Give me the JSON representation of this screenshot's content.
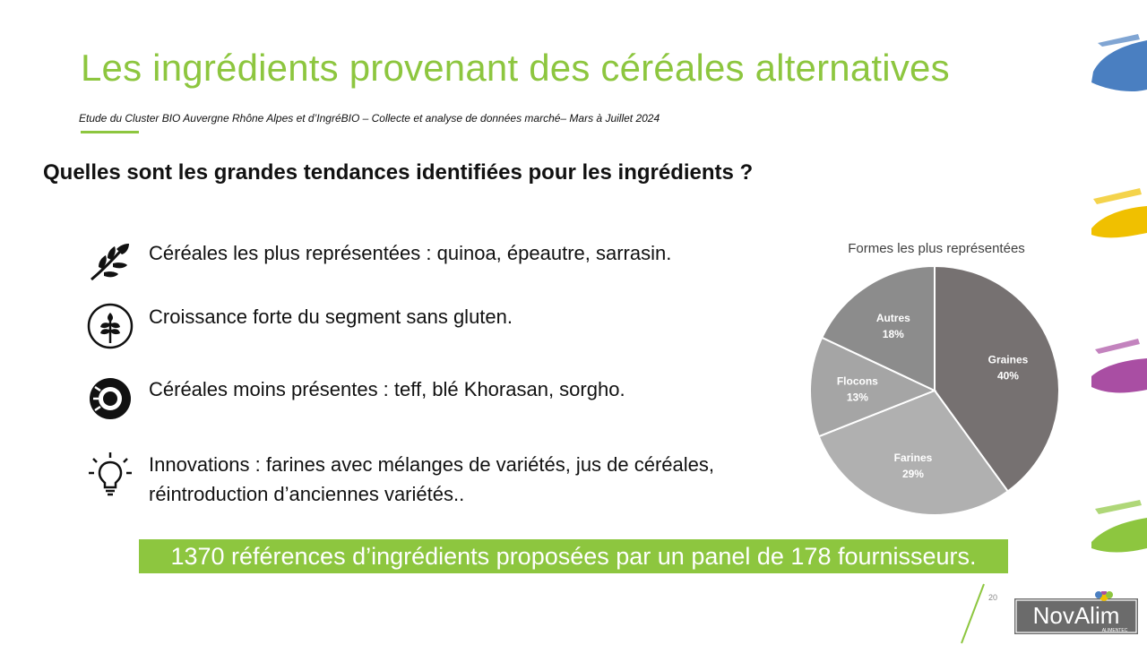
{
  "slide": {
    "title": "Les ingrédients provenant des céréales alternatives",
    "subtitle": "Etude du Cluster BIO Auvergne Rhône Alpes et d’IngréBIO – Collecte et analyse de données marché– Mars à Juillet 2024",
    "question": "Quelles sont les grandes tendances identifiées pour les ingrédients ?",
    "highlight": "1370 références d’ingrédients proposées par un panel de 178 fournisseurs.",
    "page_number": "20",
    "accent_color": "#8dc63f"
  },
  "bullets": [
    {
      "icon": "wheat-branch-icon",
      "text": "Céréales les plus représentées : quinoa, épeautre, sarrasin."
    },
    {
      "icon": "gluten-free-icon",
      "text": "Croissance forte du segment sans gluten."
    },
    {
      "icon": "grain-circle-icon",
      "text": "Céréales moins présentes : teff, blé Khorasan, sorgho."
    },
    {
      "icon": "lightbulb-icon",
      "text": "Innovations : farines avec mélanges de variétés, jus de céréales, réintroduction d’anciennes variétés.."
    }
  ],
  "chart_data": {
    "type": "pie",
    "title": "Formes les plus représentées",
    "slices": [
      {
        "label": "Graines",
        "value": 40,
        "display": "40%",
        "color": "#767171"
      },
      {
        "label": "Farines",
        "value": 29,
        "display": "29%",
        "color": "#b0b0b0"
      },
      {
        "label": "Flocons",
        "value": 13,
        "display": "13%",
        "color": "#a5a5a5"
      },
      {
        "label": "Autres",
        "value": 18,
        "display": "18%",
        "color": "#8c8c8c"
      }
    ]
  },
  "logo": {
    "text": "NovAlim",
    "tagline": "ALIMENTEC"
  },
  "decor_colors": [
    "#4a7fc1",
    "#f0c000",
    "#a94ea3",
    "#8dc63f"
  ]
}
